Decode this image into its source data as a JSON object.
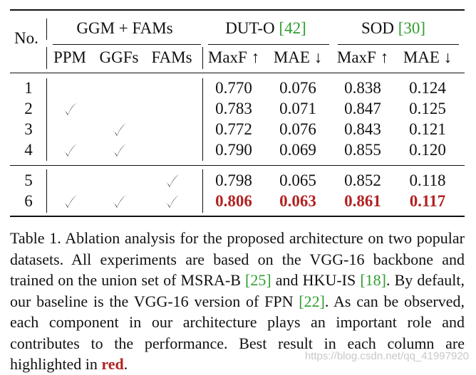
{
  "table": {
    "no_label": "No.",
    "group_components": "GGM + FAMs",
    "group_dut": {
      "name": "DUT-O",
      "ref": "42"
    },
    "group_sod": {
      "name": "SOD",
      "ref": "30"
    },
    "subheaders": [
      "PPM",
      "GGFs",
      "FAMs",
      "MaxF ↑",
      "MAE ↓",
      "MaxF ↑",
      "MAE ↓"
    ],
    "check_symbol": "✓",
    "rows": [
      {
        "no": "1",
        "ppm": false,
        "ggfs": false,
        "fams": false,
        "values": [
          "0.770",
          "0.076",
          "0.838",
          "0.124"
        ],
        "best": false
      },
      {
        "no": "2",
        "ppm": true,
        "ggfs": false,
        "fams": false,
        "values": [
          "0.783",
          "0.071",
          "0.847",
          "0.125"
        ],
        "best": false
      },
      {
        "no": "3",
        "ppm": false,
        "ggfs": true,
        "fams": false,
        "values": [
          "0.772",
          "0.076",
          "0.843",
          "0.121"
        ],
        "best": false
      },
      {
        "no": "4",
        "ppm": true,
        "ggfs": true,
        "fams": false,
        "values": [
          "0.790",
          "0.069",
          "0.855",
          "0.120"
        ],
        "best": false
      },
      {
        "no": "5",
        "ppm": false,
        "ggfs": false,
        "fams": true,
        "values": [
          "0.798",
          "0.065",
          "0.852",
          "0.118"
        ],
        "best": false
      },
      {
        "no": "6",
        "ppm": true,
        "ggfs": true,
        "fams": true,
        "values": [
          "0.806",
          "0.063",
          "0.861",
          "0.117"
        ],
        "best": true
      }
    ]
  },
  "caption": {
    "segments": [
      {
        "text": "Table 1. Ablation analysis for the proposed architecture on two popular datasets. All experiments are based on the VGG-16 backbone and trained on the union set of MSRA-B "
      },
      {
        "text": "[25]",
        "style": "ref"
      },
      {
        "text": " and HKU-IS "
      },
      {
        "text": "[18]",
        "style": "ref"
      },
      {
        "text": ". By default, our baseline is the VGG-16 version of FPN "
      },
      {
        "text": "[22]",
        "style": "ref"
      },
      {
        "text": ". As can be observed, each component in our architecture plays an important role and contributes to the performance. Best result in each column are highlighted in "
      },
      {
        "text": "red",
        "style": "hl"
      },
      {
        "text": "."
      }
    ]
  },
  "watermark": "https://blog.csdn.net/qq_41997920",
  "colors": {
    "highlight": "#b22222",
    "reference": "#2e9e2e",
    "text": "#111111",
    "watermark": "#c8c8c8"
  }
}
